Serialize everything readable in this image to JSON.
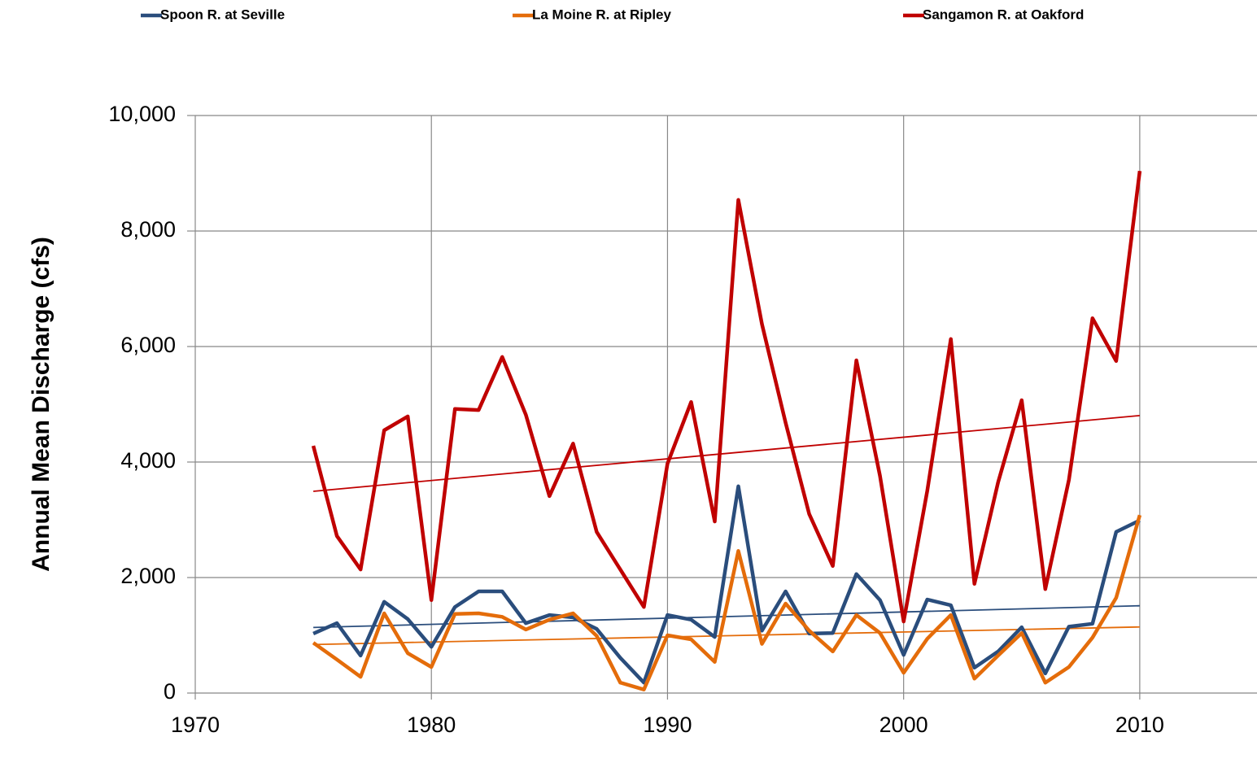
{
  "chart_data": {
    "type": "line",
    "y_label": "Annual Mean Discharge (cfs)",
    "x": [
      1975,
      1976,
      1977,
      1978,
      1979,
      1980,
      1981,
      1982,
      1983,
      1984,
      1985,
      1986,
      1987,
      1988,
      1989,
      1990,
      1991,
      1992,
      1993,
      1994,
      1995,
      1996,
      1997,
      1998,
      1999,
      2000,
      2001,
      2002,
      2003,
      2004,
      2005,
      2006,
      2007,
      2008,
      2009,
      2010
    ],
    "series": [
      {
        "name": "Spoon R. at Seville",
        "color": "#2a4d7c",
        "trendline": true,
        "values": [
          1030,
          1210,
          650,
          1580,
          1280,
          800,
          1490,
          1760,
          1760,
          1210,
          1350,
          1310,
          1110,
          610,
          180,
          1350,
          1270,
          970,
          3580,
          1080,
          1760,
          1030,
          1040,
          2060,
          1610,
          660,
          1620,
          1520,
          440,
          720,
          1140,
          340,
          1150,
          1200,
          2790,
          2990
        ]
      },
      {
        "name": "La Moine R. at Ripley",
        "color": "#e46c0a",
        "trendline": true,
        "values": [
          870,
          580,
          280,
          1380,
          690,
          450,
          1370,
          1380,
          1320,
          1100,
          1270,
          1380,
          990,
          180,
          60,
          1000,
          930,
          540,
          2460,
          850,
          1550,
          1080,
          720,
          1350,
          1040,
          350,
          940,
          1350,
          250,
          650,
          1040,
          180,
          450,
          960,
          1650,
          3080
        ]
      },
      {
        "name": "Sangamon R. at Oakford",
        "color": "#c00000",
        "trendline": true,
        "values": [
          4280,
          2720,
          2140,
          4550,
          4790,
          1610,
          4920,
          4900,
          5820,
          4820,
          3410,
          4320,
          2790,
          2140,
          1490,
          3970,
          5040,
          2970,
          8540,
          6390,
          4680,
          3100,
          2200,
          5760,
          3760,
          1240,
          3500,
          6130,
          1890,
          3650,
          5070,
          1800,
          3690,
          6490,
          5750,
          9040
        ]
      }
    ],
    "xlim": [
      1970,
      2015
    ],
    "xticks": [
      1970,
      1980,
      1990,
      2000,
      2010
    ],
    "ylim": [
      0,
      10000
    ],
    "yticks": [
      0,
      {
        "value": 2000,
        "label": "2,000"
      },
      {
        "value": 4000,
        "label": "4,000"
      },
      {
        "value": 6000,
        "label": "6,000"
      },
      {
        "value": 8000,
        "label": "8,000"
      },
      {
        "value": 10000,
        "label": "10,000"
      }
    ],
    "grid": true,
    "legend": "top"
  }
}
